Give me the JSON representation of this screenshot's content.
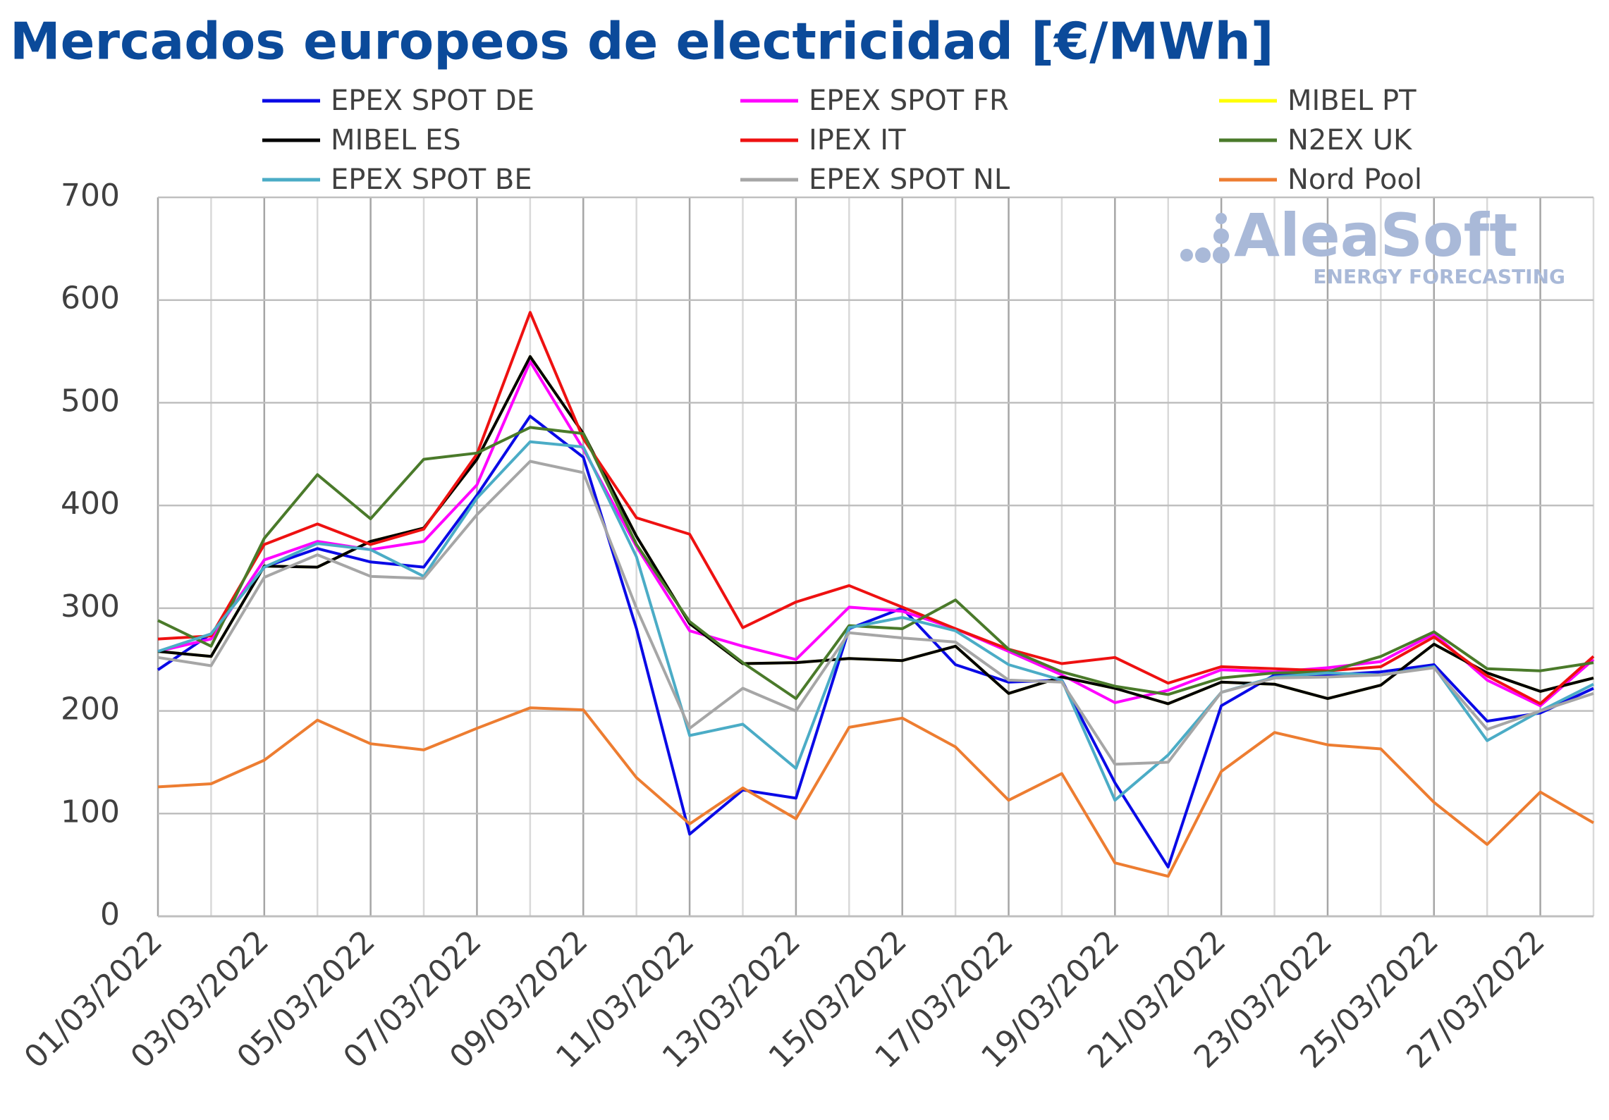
{
  "chart_data": {
    "type": "line",
    "title": "Mercados europeos de electricidad [€/MWh]",
    "watermark": {
      "name": "AleaSoft",
      "tagline": "ENERGY FORECASTING"
    },
    "categories": [
      "01/03/2022",
      null,
      "03/03/2022",
      null,
      "05/03/2022",
      null,
      "07/03/2022",
      null,
      "09/03/2022",
      null,
      "11/03/2022",
      null,
      "13/03/2022",
      null,
      "15/03/2022",
      null,
      "17/03/2022",
      null,
      "19/03/2022",
      null,
      "21/03/2022",
      null,
      "23/03/2022",
      null,
      "25/03/2022",
      null,
      "27/03/2022",
      null
    ],
    "ylim": [
      0,
      700
    ],
    "yticks": [
      0,
      100,
      200,
      300,
      400,
      500,
      600,
      700
    ],
    "grid": true,
    "legend": "top",
    "series": [
      {
        "name": "EPEX SPOT DE",
        "color": "#0a0ae6",
        "values": [
          240,
          275,
          340,
          358,
          345,
          340,
          410,
          487,
          447,
          280,
          80,
          123,
          115,
          280,
          300,
          245,
          228,
          230,
          130,
          48,
          205,
          235,
          235,
          238,
          245,
          190,
          198,
          222
        ]
      },
      {
        "name": "EPEX SPOT FR",
        "color": "#ff00ff",
        "values": [
          258,
          270,
          347,
          365,
          357,
          365,
          420,
          540,
          455,
          360,
          278,
          263,
          250,
          301,
          297,
          280,
          258,
          235,
          208,
          220,
          240,
          238,
          242,
          248,
          275,
          230,
          205,
          250
        ]
      },
      {
        "name": "MIBEL PT",
        "color": "#ffff00",
        "values": [
          258,
          253,
          341,
          340,
          365,
          378,
          445,
          545,
          470,
          370,
          285,
          246,
          247,
          251,
          249,
          263,
          217,
          233,
          222,
          207,
          228,
          226,
          212,
          225,
          265,
          237,
          219,
          232
        ]
      },
      {
        "name": "MIBEL ES",
        "color": "#000000",
        "values": [
          258,
          253,
          341,
          340,
          365,
          378,
          445,
          545,
          470,
          370,
          285,
          246,
          247,
          251,
          249,
          263,
          217,
          233,
          222,
          207,
          228,
          226,
          212,
          225,
          265,
          237,
          219,
          232
        ]
      },
      {
        "name": "IPEX IT",
        "color": "#ee1111",
        "values": [
          270,
          273,
          362,
          382,
          362,
          377,
          450,
          588,
          465,
          388,
          372,
          281,
          306,
          322,
          301,
          280,
          260,
          246,
          252,
          227,
          243,
          241,
          239,
          243,
          272,
          234,
          207,
          253
        ]
      },
      {
        "name": "N2EX UK",
        "color": "#4a7a2a",
        "values": [
          288,
          263,
          368,
          430,
          387,
          445,
          451,
          476,
          470,
          362,
          287,
          247,
          212,
          283,
          280,
          308,
          260,
          238,
          224,
          216,
          232,
          237,
          238,
          253,
          277,
          241,
          239,
          247
        ]
      },
      {
        "name": "EPEX SPOT BE",
        "color": "#4bacc6",
        "values": [
          258,
          275,
          340,
          363,
          357,
          331,
          407,
          462,
          457,
          350,
          176,
          187,
          144,
          281,
          291,
          278,
          245,
          230,
          113,
          157,
          218,
          233,
          237,
          235,
          243,
          171,
          200,
          226
        ]
      },
      {
        "name": "EPEX SPOT NL",
        "color": "#a6a6a6",
        "values": [
          252,
          244,
          330,
          352,
          331,
          329,
          391,
          443,
          432,
          300,
          183,
          222,
          200,
          276,
          271,
          267,
          230,
          228,
          148,
          150,
          218,
          232,
          233,
          235,
          242,
          182,
          200,
          217
        ]
      },
      {
        "name": "Nord Pool",
        "color": "#ed7d31",
        "values": [
          126,
          129,
          152,
          191,
          168,
          162,
          183,
          203,
          201,
          135,
          90,
          125,
          95,
          184,
          193,
          165,
          113,
          139,
          52,
          39,
          141,
          179,
          167,
          163,
          111,
          70,
          121,
          91
        ]
      }
    ]
  }
}
